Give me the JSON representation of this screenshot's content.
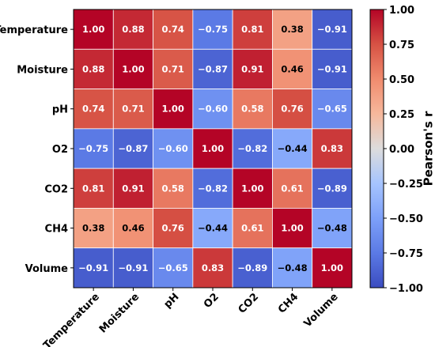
{
  "chart_data": {
    "type": "heatmap",
    "title": "",
    "xlabel": "",
    "ylabel": "",
    "categories": [
      "Temperature",
      "Moisture",
      "pH",
      "O2",
      "CO2",
      "CH4",
      "Volume"
    ],
    "matrix": [
      [
        1.0,
        0.88,
        0.74,
        -0.75,
        0.81,
        0.38,
        -0.91
      ],
      [
        0.88,
        1.0,
        0.71,
        -0.87,
        0.91,
        0.46,
        -0.91
      ],
      [
        0.74,
        0.71,
        1.0,
        -0.6,
        0.58,
        0.76,
        -0.65
      ],
      [
        -0.75,
        -0.87,
        -0.6,
        1.0,
        -0.82,
        -0.44,
        0.83
      ],
      [
        0.81,
        0.91,
        0.58,
        -0.82,
        1.0,
        0.61,
        -0.89
      ],
      [
        0.38,
        0.46,
        0.76,
        -0.44,
        0.61,
        1.0,
        -0.48
      ],
      [
        -0.91,
        -0.91,
        -0.65,
        0.83,
        -0.89,
        -0.48,
        1.0
      ]
    ],
    "colorbar": {
      "label": "Pearson's r",
      "range": [
        -1.0,
        1.0
      ],
      "ticks": [
        "1.00",
        "0.75",
        "0.50",
        "0.25",
        "0.00",
        "−0.25",
        "−0.50",
        "−0.75",
        "−1.00"
      ]
    },
    "colormap": "coolwarm",
    "colors": {
      "low": "#3b4cc0",
      "mid": "#dddddd",
      "high": "#b40426"
    }
  }
}
